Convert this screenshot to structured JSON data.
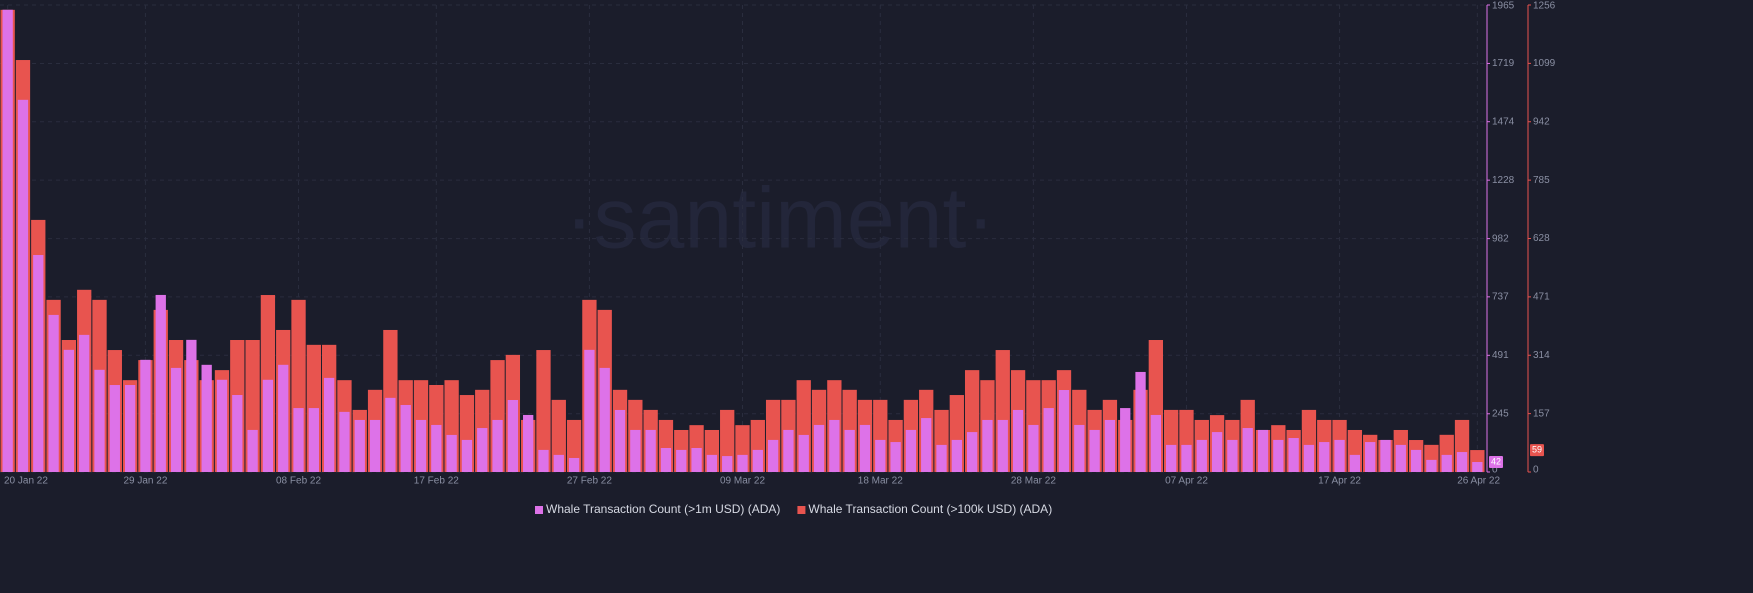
{
  "chart_data": {
    "type": "bar",
    "watermark": "·santiment·",
    "categories": [
      "20 Jan 22",
      null,
      null,
      null,
      null,
      null,
      null,
      null,
      null,
      "29 Jan 22",
      null,
      null,
      null,
      null,
      null,
      null,
      null,
      null,
      null,
      "08 Feb 22",
      null,
      null,
      null,
      null,
      null,
      null,
      null,
      null,
      "17 Feb 22",
      null,
      null,
      null,
      null,
      null,
      null,
      null,
      null,
      null,
      "27 Feb 22",
      null,
      null,
      null,
      null,
      null,
      null,
      null,
      null,
      null,
      "09 Mar 22",
      null,
      null,
      null,
      null,
      null,
      null,
      null,
      null,
      "18 Mar 22",
      null,
      null,
      null,
      null,
      null,
      null,
      null,
      null,
      null,
      "28 Mar 22",
      null,
      null,
      null,
      null,
      null,
      null,
      null,
      null,
      null,
      "07 Apr 22",
      null,
      null,
      null,
      null,
      null,
      null,
      null,
      null,
      null,
      "17 Apr 22",
      null,
      null,
      null,
      null,
      null,
      null,
      null,
      null,
      "26 Apr 22"
    ],
    "series": [
      {
        "name": "Whale Transaction Count (>1m USD) (ADA)",
        "color": "#dd72e8",
        "axis": "y",
        "values": [
          1945,
          1566,
          913,
          661,
          514,
          577,
          430,
          366,
          366,
          472,
          745,
          438,
          556,
          451,
          388,
          324,
          177,
          388,
          451,
          269,
          269,
          396,
          253,
          219,
          219,
          312,
          282,
          219,
          198,
          156,
          135,
          185,
          219,
          303,
          240,
          93,
          72,
          59,
          514,
          438,
          261,
          177,
          177,
          101,
          93,
          101,
          72,
          67,
          72,
          93,
          135,
          177,
          156,
          198,
          219,
          177,
          198,
          135,
          126,
          177,
          227,
          114,
          135,
          168,
          219,
          219,
          261,
          198,
          269,
          345,
          198,
          177,
          219,
          269,
          421,
          240,
          114,
          114,
          135,
          168,
          135,
          185,
          177,
          135,
          143,
          114,
          126,
          135,
          72,
          126,
          135,
          114,
          93,
          51,
          72,
          84,
          42
        ]
      },
      {
        "name": "Whale Transaction Count (>100k USD) (ADA)",
        "color": "#e8544f",
        "axis": "y2",
        "values": [
          1243,
          1108,
          678,
          463,
          355,
          490,
          463,
          328,
          247,
          301,
          436,
          355,
          301,
          247,
          274,
          355,
          355,
          476,
          382,
          463,
          342,
          342,
          247,
          167,
          221,
          382,
          247,
          247,
          234,
          247,
          207,
          221,
          301,
          315,
          140,
          328,
          194,
          140,
          463,
          436,
          221,
          194,
          167,
          140,
          113,
          126,
          113,
          167,
          126,
          140,
          194,
          194,
          247,
          221,
          247,
          221,
          194,
          194,
          140,
          194,
          221,
          167,
          207,
          274,
          247,
          328,
          274,
          247,
          247,
          274,
          221,
          167,
          194,
          140,
          221,
          355,
          167,
          167,
          140,
          153,
          140,
          194,
          113,
          126,
          113,
          167,
          140,
          140,
          113,
          100,
          86,
          113,
          86,
          73,
          100,
          140,
          59
        ]
      }
    ],
    "ylim": [
      0,
      1965
    ],
    "yticks": [
      0,
      245,
      491,
      737,
      982,
      1228,
      1474,
      1719,
      1965
    ],
    "y2lim": [
      0,
      1256
    ],
    "y2ticks": [
      0,
      157,
      314,
      471,
      628,
      785,
      942,
      1099,
      1256
    ],
    "grid": true,
    "legend": "bottom"
  }
}
